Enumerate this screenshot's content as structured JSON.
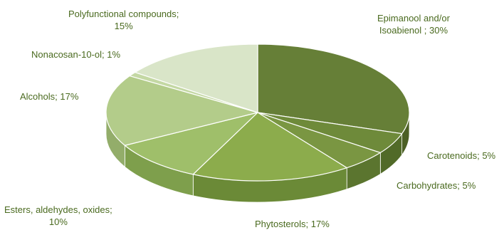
{
  "chart_data": {
    "type": "pie",
    "title": "",
    "three_d": true,
    "legend": "none",
    "slices": [
      {
        "label": "Epimanool and/or Isoabienol",
        "value": 30,
        "display": [
          "Epimanool and/or",
          "Isoabienol ; 30%"
        ],
        "top": "#667f37",
        "side": "#4b5f24"
      },
      {
        "label": "Carotenoids",
        "value": 5,
        "display": [
          "Carotenoids; 5%"
        ],
        "top": "#6e8a3a",
        "side": "#516a28"
      },
      {
        "label": "Carbohydrates",
        "value": 5,
        "display": [
          "Carbohydrates; 5%"
        ],
        "top": "#7a9642",
        "side": "#5b752f"
      },
      {
        "label": "Phytosterols",
        "value": 17,
        "display": [
          "Phytosterols; 17%"
        ],
        "top": "#8cac4c",
        "side": "#6b8a37"
      },
      {
        "label": "Esters, aldehydes, oxides",
        "value": 10,
        "display": [
          "Esters, aldehydes, oxides;",
          "10%"
        ],
        "top": "#9fbf6a",
        "side": "#7e9f4c"
      },
      {
        "label": "Alcohols",
        "value": 17,
        "display": [
          "Alcohols; 17%"
        ],
        "top": "#b3cc8a",
        "side": "#93ad6a"
      },
      {
        "label": "Nonacosan-10-ol",
        "value": 1,
        "display": [
          "Nonacosan-10-ol; 1%"
        ],
        "top": "#c4d8a4",
        "side": "#a3ba82"
      },
      {
        "label": "Polyfunctional compounds",
        "value": 15,
        "display": [
          "Polyfunctional compounds;",
          "15%"
        ],
        "top": "#d9e5c8",
        "side": "#b8c9a2"
      }
    ]
  }
}
